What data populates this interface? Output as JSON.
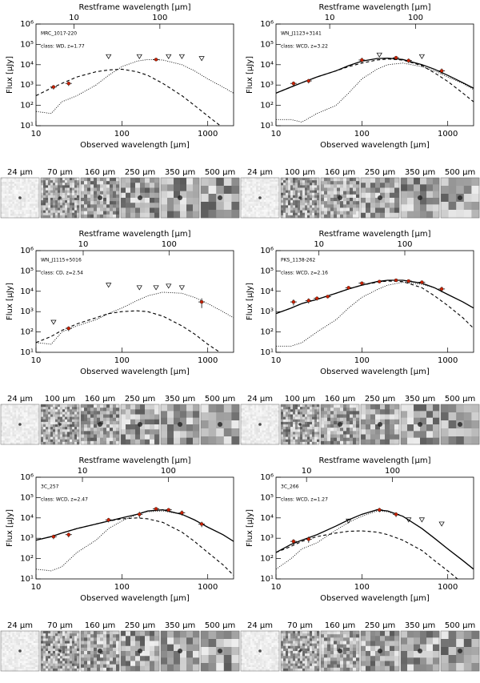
{
  "chart_data": [
    {
      "type": "sed",
      "title": "MRC_1017-220",
      "annotation": "class: WD, z=1.77",
      "xlabel": "Observed wavelength [μm]",
      "x2label": "Restframe wavelength [μm]",
      "ylabel": "Flux [μJy]",
      "log_x": true,
      "log_y": true,
      "xlim": [
        10,
        2000
      ],
      "xticks": [
        10,
        100,
        1000
      ],
      "x2lim": [
        3.61,
        722
      ],
      "x2ticks": [
        10,
        100
      ],
      "ylim": [
        10,
        1000000
      ],
      "yticks": [
        {
          "value": 10,
          "label": "10¹"
        },
        {
          "value": 100,
          "label": "10²"
        },
        {
          "value": 1000,
          "label": "10³"
        },
        {
          "value": 10000,
          "label": "10⁴"
        },
        {
          "value": 100000,
          "label": "10⁵"
        },
        {
          "value": 1000000,
          "label": "10⁶"
        }
      ],
      "detections": {
        "color": "#cc2200",
        "x": [
          16,
          24,
          250
        ],
        "values": [
          800,
          1200,
          18000
        ],
        "errors": [
          200,
          300,
          3000
        ]
      },
      "upper_limits": {
        "x": [
          70,
          160,
          350,
          500,
          850
        ],
        "values": [
          25000,
          25000,
          25000,
          25000,
          20000
        ]
      },
      "models": {
        "x": [
          10,
          15,
          20,
          30,
          50,
          70,
          100,
          150,
          200,
          300,
          500,
          700,
          1000,
          1500,
          2000
        ],
        "agn": [
          300,
          700,
          1200,
          2500,
          4500,
          5500,
          6000,
          4500,
          3000,
          1200,
          300,
          100,
          30,
          8,
          3
        ],
        "starburst": [
          50,
          40,
          150,
          300,
          1000,
          3000,
          8000,
          15000,
          18000,
          17000,
          10000,
          5000,
          2000,
          800,
          400
        ]
      },
      "cutout_labels": [
        "24 μm",
        "70 μm",
        "160 μm",
        "250 μm",
        "350 μm",
        "500 μm"
      ]
    },
    {
      "type": "sed",
      "title": "WN_J1123+3141",
      "annotation": "class: WCD, z=3.22",
      "xlabel": "Observed wavelength [μm]",
      "x2label": "Restframe wavelength [μm]",
      "ylabel": "Flux [μJy]",
      "log_x": true,
      "log_y": true,
      "xlim": [
        10,
        2000
      ],
      "xticks": [
        10,
        100,
        1000
      ],
      "x2lim": [
        2.37,
        474
      ],
      "x2ticks": [
        10,
        100
      ],
      "ylim": [
        10,
        1000000
      ],
      "yticks": [
        {
          "value": 10,
          "label": "10¹"
        },
        {
          "value": 100,
          "label": "10²"
        },
        {
          "value": 1000,
          "label": "10³"
        },
        {
          "value": 10000,
          "label": "10⁴"
        },
        {
          "value": 100000,
          "label": "10⁵"
        },
        {
          "value": 1000000,
          "label": "10⁶"
        }
      ],
      "detections": {
        "color": "#cc2200",
        "x": [
          16,
          24,
          100,
          250,
          350,
          850
        ],
        "values": [
          1200,
          1600,
          17000,
          22000,
          16000,
          5000
        ],
        "errors": [
          300,
          400,
          5000,
          5000,
          4000,
          1500
        ]
      },
      "upper_limits": {
        "x": [
          160,
          500
        ],
        "values": [
          30000,
          25000
        ]
      },
      "models": {
        "x": [
          10,
          15,
          20,
          30,
          50,
          70,
          100,
          150,
          200,
          300,
          500,
          700,
          1000,
          1500,
          2000
        ],
        "total": [
          400,
          800,
          1300,
          2500,
          5000,
          9000,
          15000,
          20000,
          21000,
          18000,
          10000,
          6000,
          3000,
          1300,
          700
        ],
        "agn": [
          400,
          800,
          1300,
          2500,
          5000,
          8000,
          12000,
          17000,
          19000,
          17000,
          9000,
          4000,
          1500,
          400,
          150
        ],
        "starburst": [
          20,
          20,
          15,
          40,
          100,
          400,
          2000,
          6000,
          10000,
          12000,
          8000,
          5000,
          2500,
          1200,
          600
        ]
      },
      "cutout_labels": [
        "24 μm",
        "100 μm",
        "160 μm",
        "250 μm",
        "350 μm",
        "500 μm"
      ]
    },
    {
      "type": "sed",
      "title": "WN_J1115+5016",
      "annotation": "class: CD, z=2.54",
      "xlabel": "Observed wavelength [μm]",
      "x2label": "Restframe wavelength [μm]",
      "ylabel": "Flux [μJy]",
      "log_x": true,
      "log_y": true,
      "xlim": [
        10,
        2000
      ],
      "xticks": [
        10,
        100,
        1000
      ],
      "x2lim": [
        2.82,
        565
      ],
      "x2ticks": [
        10,
        100
      ],
      "ylim": [
        10,
        1000000
      ],
      "yticks": [
        {
          "value": 10,
          "label": "10¹"
        },
        {
          "value": 100,
          "label": "10²"
        },
        {
          "value": 1000,
          "label": "10³"
        },
        {
          "value": 10000,
          "label": "10⁴"
        },
        {
          "value": 100000,
          "label": "10⁵"
        },
        {
          "value": 1000000,
          "label": "10⁶"
        }
      ],
      "detections": {
        "color": "#cc2200",
        "x": [
          24,
          850
        ],
        "values": [
          150,
          3000
        ],
        "errors": [
          40,
          1500
        ]
      },
      "upper_limits": {
        "x": [
          16,
          70,
          160,
          250,
          350,
          500
        ],
        "values": [
          300,
          20000,
          15000,
          15000,
          18000,
          15000
        ]
      },
      "models": {
        "x": [
          10,
          15,
          20,
          30,
          50,
          70,
          100,
          150,
          200,
          300,
          500,
          700,
          1000,
          1500,
          2000
        ],
        "agn": [
          30,
          60,
          120,
          250,
          500,
          800,
          1000,
          1100,
          1000,
          600,
          200,
          80,
          25,
          8,
          3
        ],
        "starburst": [
          30,
          25,
          100,
          200,
          400,
          800,
          1500,
          3500,
          6000,
          9000,
          8000,
          5000,
          2500,
          1000,
          500
        ]
      },
      "cutout_labels": [
        "24 μm",
        "100 μm",
        "160 μm",
        "250 μm",
        "350 μm",
        "500 μm"
      ]
    },
    {
      "type": "sed",
      "title": "PKS_1138-262",
      "annotation": "class: WCD, z=2.16",
      "xlabel": "Observed wavelength [μm]",
      "x2label": "Restframe wavelength [μm]",
      "ylabel": "Flux [μJy]",
      "log_x": true,
      "log_y": true,
      "xlim": [
        10,
        2000
      ],
      "xticks": [
        10,
        100,
        1000
      ],
      "x2lim": [
        3.16,
        633
      ],
      "x2ticks": [
        10,
        100
      ],
      "ylim": [
        10,
        1000000
      ],
      "yticks": [
        {
          "value": 10,
          "label": "10¹"
        },
        {
          "value": 100,
          "label": "10²"
        },
        {
          "value": 1000,
          "label": "10³"
        },
        {
          "value": 10000,
          "label": "10⁴"
        },
        {
          "value": 100000,
          "label": "10⁵"
        },
        {
          "value": 1000000,
          "label": "10⁶"
        }
      ],
      "detections": {
        "color": "#cc2200",
        "x": [
          16,
          24,
          30,
          40,
          70,
          100,
          160,
          250,
          350,
          500,
          850
        ],
        "values": [
          3000,
          3500,
          4500,
          5500,
          15000,
          25000,
          30000,
          35000,
          32000,
          28000,
          13000
        ],
        "errors": [
          1000,
          1000,
          1000,
          1000,
          3000,
          5000,
          5000,
          5000,
          5000,
          5000,
          4000
        ]
      },
      "models": {
        "x": [
          10,
          15,
          20,
          30,
          50,
          70,
          100,
          150,
          200,
          300,
          500,
          700,
          1000,
          1500,
          2000
        ],
        "total": [
          800,
          1500,
          2500,
          4000,
          8000,
          13000,
          20000,
          30000,
          35000,
          35000,
          25000,
          15000,
          7000,
          3000,
          1500
        ],
        "agn": [
          800,
          1500,
          2500,
          4000,
          8000,
          13000,
          20000,
          28000,
          32000,
          30000,
          15000,
          6000,
          2000,
          500,
          150
        ],
        "starburst": [
          20,
          20,
          30,
          100,
          400,
          1500,
          5000,
          12000,
          20000,
          28000,
          22000,
          15000,
          7000,
          3000,
          1500
        ]
      },
      "cutout_labels": [
        "24 μm",
        "100 μm",
        "160 μm",
        "250 μm",
        "350 μm",
        "500 μm"
      ]
    },
    {
      "type": "sed",
      "title": "3C_257",
      "annotation": "class: WCD, z=2.47",
      "xlabel": "Observed wavelength [μm]",
      "x2label": "Restframe wavelength [μm]",
      "ylabel": "Flux [μJy]",
      "log_x": true,
      "log_y": true,
      "xlim": [
        10,
        2000
      ],
      "xticks": [
        10,
        100,
        1000
      ],
      "x2lim": [
        2.88,
        576
      ],
      "x2ticks": [
        10,
        100
      ],
      "ylim": [
        10,
        1000000
      ],
      "yticks": [
        {
          "value": 10,
          "label": "10¹"
        },
        {
          "value": 100,
          "label": "10²"
        },
        {
          "value": 1000,
          "label": "10³"
        },
        {
          "value": 10000,
          "label": "10⁴"
        },
        {
          "value": 100000,
          "label": "10⁵"
        },
        {
          "value": 1000000,
          "label": "10⁶"
        }
      ],
      "detections": {
        "color": "#cc2200",
        "x": [
          16,
          24,
          70,
          160,
          250,
          350,
          500,
          850
        ],
        "values": [
          1200,
          1500,
          8000,
          15000,
          28000,
          25000,
          18000,
          5000
        ],
        "errors": [
          300,
          400,
          2000,
          5000,
          5000,
          5000,
          5000,
          1500
        ]
      },
      "models": {
        "x": [
          10,
          15,
          20,
          30,
          50,
          70,
          100,
          150,
          200,
          300,
          500,
          700,
          1000,
          1500,
          2000
        ],
        "total": [
          800,
          1200,
          1800,
          3000,
          5000,
          7000,
          10000,
          15000,
          22000,
          25000,
          15000,
          8000,
          3500,
          1500,
          700
        ],
        "agn": [
          800,
          1200,
          1800,
          3000,
          5000,
          7000,
          9000,
          10000,
          9000,
          6000,
          2000,
          700,
          200,
          50,
          15
        ],
        "starburst": [
          30,
          25,
          40,
          200,
          800,
          3000,
          7000,
          15000,
          20000,
          22000,
          15000,
          8000,
          3500,
          1500,
          700
        ]
      },
      "cutout_labels": [
        "24 μm",
        "70 μm",
        "160 μm",
        "250 μm",
        "350 μm",
        "500 μm"
      ]
    },
    {
      "type": "sed",
      "title": "3C_266",
      "annotation": "class: WCD, z=1.27",
      "xlabel": "Observed wavelength [μm]",
      "x2label": "Restframe wavelength [μm]",
      "ylabel": "Flux [μJy]",
      "log_x": true,
      "log_y": true,
      "xlim": [
        10,
        2000
      ],
      "xticks": [
        10,
        100,
        1000
      ],
      "x2lim": [
        4.41,
        881
      ],
      "x2ticks": [
        10,
        100
      ],
      "ylim": [
        10,
        1000000
      ],
      "yticks": [
        {
          "value": 10,
          "label": "10¹"
        },
        {
          "value": 100,
          "label": "10²"
        },
        {
          "value": 1000,
          "label": "10³"
        },
        {
          "value": 10000,
          "label": "10⁴"
        },
        {
          "value": 100000,
          "label": "10⁵"
        },
        {
          "value": 1000000,
          "label": "10⁶"
        }
      ],
      "detections": {
        "color": "#cc2200",
        "x": [
          16,
          24,
          160,
          250
        ],
        "values": [
          700,
          900,
          25000,
          15000
        ],
        "errors": [
          200,
          300,
          6000,
          4000
        ]
      },
      "upper_limits": {
        "x": [
          70,
          350,
          500,
          850
        ],
        "values": [
          7000,
          8000,
          8000,
          5000
        ]
      },
      "models": {
        "x": [
          10,
          15,
          20,
          30,
          50,
          70,
          100,
          150,
          200,
          300,
          500,
          700,
          1000,
          1500,
          2000
        ],
        "total": [
          200,
          500,
          800,
          1500,
          4000,
          8000,
          15000,
          25000,
          22000,
          12000,
          3000,
          1000,
          300,
          80,
          30
        ],
        "agn": [
          200,
          400,
          700,
          1200,
          1800,
          2200,
          2300,
          2000,
          1500,
          800,
          250,
          80,
          25,
          6,
          2
        ],
        "starburst": [
          30,
          100,
          300,
          600,
          2500,
          6000,
          12000,
          22000,
          20000,
          12000,
          3000,
          1000,
          300,
          80,
          30
        ]
      },
      "cutout_labels": [
        "24 μm",
        "70 μm",
        "160 μm",
        "250 μm",
        "350 μm",
        "500 μm"
      ]
    }
  ]
}
